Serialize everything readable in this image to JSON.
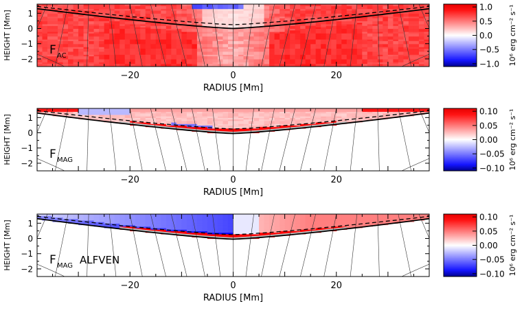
{
  "chart_data": [
    {
      "type": "heatmap",
      "label_main": "F",
      "label_sub": "AC",
      "label_extra": "",
      "xlabel": "RADIUS [Mm]",
      "ylabel": "HEIGHT [Mm]",
      "xlim": [
        -38,
        38
      ],
      "ylim": [
        -2.5,
        1.6
      ],
      "xticks": [
        -20,
        0,
        20
      ],
      "yticks": [
        -2,
        -1,
        0,
        1
      ],
      "colorbar": {
        "label": "10⁶ erg cm⁻² s⁻¹",
        "range": [
          -1.1,
          1.1
        ],
        "ticks": [
          {
            "v": 1.0,
            "t": "1.0"
          },
          {
            "v": 0.5,
            "t": "0.5"
          },
          {
            "v": 0.0,
            "t": "0.0"
          },
          {
            "v": -0.5,
            "t": "−0.5"
          },
          {
            "v": -1.0,
            "t": "−1.0"
          }
        ]
      },
      "solid_contour": {
        "center": 0.0,
        "edge": 1.3
      },
      "dashed_contour": {
        "center": 0.25,
        "edge": 1.45
      },
      "field": "ac"
    },
    {
      "type": "heatmap",
      "label_main": "F",
      "label_sub": "MAG",
      "label_extra": "",
      "xlabel": "RADIUS [Mm]",
      "ylabel": "HEIGHT [Mm]",
      "xlim": [
        -38,
        38
      ],
      "ylim": [
        -2.5,
        1.6
      ],
      "xticks": [
        -20,
        0,
        20
      ],
      "yticks": [
        -2,
        -1,
        0,
        1
      ],
      "colorbar": {
        "label": "10⁶ erg cm⁻² s⁻¹",
        "range": [
          -0.11,
          0.11
        ],
        "ticks": [
          {
            "v": 0.1,
            "t": "0.10"
          },
          {
            "v": 0.05,
            "t": "0.05"
          },
          {
            "v": 0.0,
            "t": "0.00"
          },
          {
            "v": -0.05,
            "t": "−0.05"
          },
          {
            "v": -0.1,
            "t": "−0.10"
          }
        ]
      },
      "solid_contour": {
        "center": -0.05,
        "edge": 1.3
      },
      "dashed_contour": {
        "center": 0.25,
        "edge": 1.45
      },
      "field": "mag"
    },
    {
      "type": "heatmap",
      "label_main": "F",
      "label_sub": "MAG",
      "label_extra": "ALFVEN",
      "xlabel": "RADIUS [Mm]",
      "ylabel": "HEIGHT [Mm]",
      "xlim": [
        -38,
        38
      ],
      "ylim": [
        -2.5,
        1.6
      ],
      "xticks": [
        -20,
        0,
        20
      ],
      "yticks": [
        -2,
        -1,
        0,
        1
      ],
      "colorbar": {
        "label": "10⁶ erg cm⁻² s⁻¹",
        "range": [
          -0.11,
          0.11
        ],
        "ticks": [
          {
            "v": 0.1,
            "t": "0.10"
          },
          {
            "v": 0.05,
            "t": "0.05"
          },
          {
            "v": 0.0,
            "t": "0.00"
          },
          {
            "v": -0.05,
            "t": "−0.05"
          },
          {
            "v": -0.1,
            "t": "−0.10"
          }
        ]
      },
      "solid_contour": {
        "center": -0.05,
        "edge": 1.3
      },
      "dashed_contour": {
        "center": 0.25,
        "edge": 1.45
      },
      "field": "alfven"
    }
  ]
}
